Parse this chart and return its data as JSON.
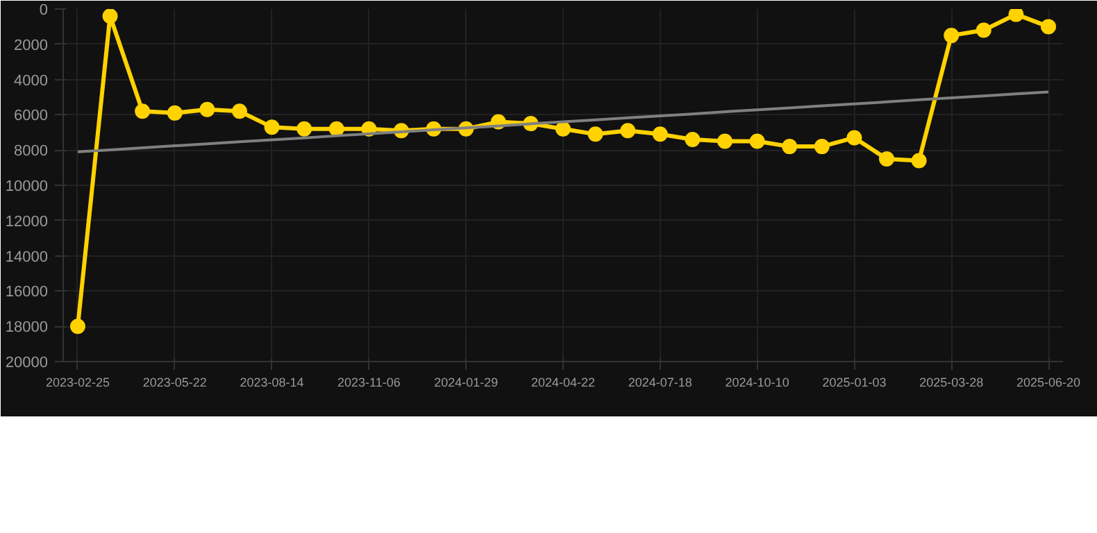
{
  "chart_data": {
    "type": "line",
    "categories": [
      "2023-02-25",
      null,
      null,
      "2023-05-22",
      null,
      null,
      "2023-08-14",
      null,
      null,
      "2023-11-06",
      null,
      null,
      "2024-01-29",
      null,
      null,
      "2024-04-22",
      null,
      null,
      "2024-07-18",
      null,
      null,
      "2024-10-10",
      null,
      null,
      "2025-01-03",
      null,
      null,
      "2025-03-28",
      null,
      null,
      "2025-06-20"
    ],
    "series": [
      {
        "color": "#ffd200",
        "marker": "circle",
        "values": [
          18000,
          400,
          5800,
          5900,
          5700,
          5800,
          6700,
          6800,
          6800,
          6800,
          6900,
          6800,
          6800,
          6400,
          6500,
          6800,
          7100,
          6900,
          7100,
          7400,
          7500,
          7500,
          7800,
          7800,
          7300,
          8500,
          8600,
          1500,
          1200,
          300,
          1000
        ]
      },
      {
        "color": "#808080",
        "marker": "none",
        "values": [
          8100,
          7990,
          7870,
          7760,
          7650,
          7530,
          7420,
          7310,
          7190,
          7080,
          6970,
          6850,
          6740,
          6630,
          6510,
          6400,
          6290,
          6170,
          6060,
          5950,
          5830,
          5720,
          5610,
          5490,
          5380,
          5270,
          5150,
          5040,
          4930,
          4810,
          4700
        ]
      }
    ],
    "ylim": [
      20000,
      0
    ],
    "yticks": [
      0,
      2000,
      4000,
      6000,
      8000,
      10000,
      12000,
      14000,
      16000,
      18000,
      20000
    ],
    "grid": true
  }
}
